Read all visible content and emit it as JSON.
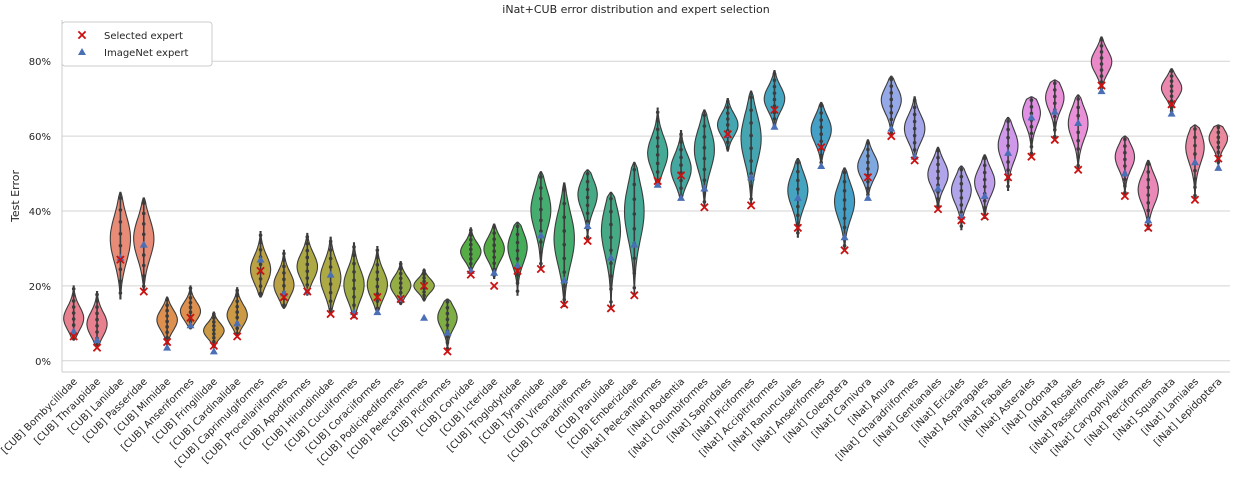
{
  "chart_data": {
    "type": "violin",
    "title": "iNat+CUB error distribution and expert selection",
    "xlabel": "",
    "ylabel": "Test Error",
    "ylim": [
      -3,
      91
    ],
    "yticks": [
      0,
      20,
      40,
      60,
      80
    ],
    "ytick_labels": [
      "0%",
      "20%",
      "40%",
      "60%",
      "80%"
    ],
    "grid": "horizontal",
    "legend": {
      "placement": "top-left",
      "entries": [
        {
          "label": "Selected expert",
          "marker": "x",
          "color": "#cc1111"
        },
        {
          "label": "ImageNet expert",
          "marker": "triangle",
          "color": "#4a6fb5"
        }
      ]
    },
    "categories": [
      {
        "name": "[CUB] Bombycillidae",
        "min": 5.5,
        "max": 20,
        "median": 11,
        "selected": 6.5,
        "imagenet": 7.8,
        "color": "#e8808f"
      },
      {
        "name": "[CUB] Thraupidae",
        "min": 3.5,
        "max": 18.5,
        "median": 9.5,
        "selected": 3.5,
        "imagenet": 5.5,
        "color": "#e8808f"
      },
      {
        "name": "[CUB] Laniidae",
        "min": 16.5,
        "max": 45,
        "median": 33,
        "selected": 27,
        "imagenet": 27.5,
        "color": "#e88c78"
      },
      {
        "name": "[CUB] Passeridae",
        "min": 18.5,
        "max": 43.5,
        "median": 33,
        "selected": 18.5,
        "imagenet": 31,
        "color": "#e88c78"
      },
      {
        "name": "[CUB] Mimidae",
        "min": 4,
        "max": 17,
        "median": 11,
        "selected": 5,
        "imagenet": 3.5,
        "color": "#dd9050"
      },
      {
        "name": "[CUB] Anseriformes",
        "min": 8.5,
        "max": 20,
        "median": 13,
        "selected": 11.5,
        "imagenet": 9.5,
        "color": "#dd9050"
      },
      {
        "name": "[CUB] Fringillidae",
        "min": 3.5,
        "max": 13,
        "median": 8,
        "selected": 4,
        "imagenet": 2.5,
        "color": "#cc9a45"
      },
      {
        "name": "[CUB] Cardinalidae",
        "min": 6.5,
        "max": 19.5,
        "median": 12,
        "selected": 6.5,
        "imagenet": 10,
        "color": "#cc9a45"
      },
      {
        "name": "[CUB] Caprimulgiformes",
        "min": 17,
        "max": 34.5,
        "median": 24,
        "selected": 24,
        "imagenet": 27,
        "color": "#bba245"
      },
      {
        "name": "[CUB] Procellariiformes",
        "min": 14,
        "max": 29.5,
        "median": 20,
        "selected": 17,
        "imagenet": 18,
        "color": "#bba245"
      },
      {
        "name": "[CUB] Apodiformes",
        "min": 17.5,
        "max": 34,
        "median": 25,
        "selected": 18.5,
        "imagenet": 18.5,
        "color": "#adaa45"
      },
      {
        "name": "[CUB] Hirundinidae",
        "min": 12.5,
        "max": 33,
        "median": 22,
        "selected": 12.5,
        "imagenet": 23,
        "color": "#adaa45"
      },
      {
        "name": "[CUB] Cuculiformes",
        "min": 11.5,
        "max": 31.5,
        "median": 20,
        "selected": 12,
        "imagenet": 13,
        "color": "#a0ad45"
      },
      {
        "name": "[CUB] Coraciiformes",
        "min": 13,
        "max": 30.5,
        "median": 20,
        "selected": 17,
        "imagenet": 13,
        "color": "#a0ad45"
      },
      {
        "name": "[CUB] Podicipediformes",
        "min": 15,
        "max": 26.5,
        "median": 20,
        "selected": 16.5,
        "imagenet": 16.5,
        "color": "#95ad45"
      },
      {
        "name": "[CUB] Pelecaniformes",
        "min": 16,
        "max": 24.5,
        "median": 20,
        "selected": 20,
        "imagenet": 11.5,
        "color": "#95ad45"
      },
      {
        "name": "[CUB] Piciformes",
        "min": 2.5,
        "max": 16.5,
        "median": 12,
        "selected": 2.5,
        "imagenet": 7.5,
        "color": "#7fae45"
      },
      {
        "name": "[CUB] Corvidae",
        "min": 24,
        "max": 35.5,
        "median": 29,
        "selected": 23,
        "imagenet": 24,
        "color": "#55ad45"
      },
      {
        "name": "[CUB] Icteridae",
        "min": 22,
        "max": 36.5,
        "median": 30,
        "selected": 20,
        "imagenet": 23.5,
        "color": "#55ad45"
      },
      {
        "name": "[CUB] Troglodytidae",
        "min": 17.5,
        "max": 37,
        "median": 31,
        "selected": 24,
        "imagenet": 25.5,
        "color": "#45ad5a"
      },
      {
        "name": "[CUB] Tyrannidae",
        "min": 24.5,
        "max": 50.5,
        "median": 41,
        "selected": 24.5,
        "imagenet": 33.5,
        "color": "#45ad70"
      },
      {
        "name": "[CUB] Vireonidae",
        "min": 14.5,
        "max": 47.5,
        "median": 33,
        "selected": 15,
        "imagenet": 21.5,
        "color": "#45ad70"
      },
      {
        "name": "[CUB] Charadriiformes",
        "min": 32,
        "max": 51,
        "median": 45,
        "selected": 32,
        "imagenet": 36,
        "color": "#45aa85"
      },
      {
        "name": "[CUB] Parulidae",
        "min": 14,
        "max": 45,
        "median": 36,
        "selected": 14,
        "imagenet": 27.5,
        "color": "#45aa85"
      },
      {
        "name": "[CUB] Emberizidae",
        "min": 17.5,
        "max": 53,
        "median": 41,
        "selected": 17.5,
        "imagenet": 31,
        "color": "#45aa95"
      },
      {
        "name": "[iNat] Pelecaniformes",
        "min": 47,
        "max": 67.5,
        "median": 55,
        "selected": 48,
        "imagenet": 47,
        "color": "#45aa95"
      },
      {
        "name": "[iNat] Rodentia",
        "min": 43,
        "max": 61.5,
        "median": 51,
        "selected": 49.5,
        "imagenet": 43.5,
        "color": "#45a8a0"
      },
      {
        "name": "[iNat] Columbiformes",
        "min": 41,
        "max": 67,
        "median": 57,
        "selected": 41,
        "imagenet": 46,
        "color": "#45a8a0"
      },
      {
        "name": "[iNat] Sapindales",
        "min": 56,
        "max": 70,
        "median": 63,
        "selected": 60.5,
        "imagenet": 60.5,
        "color": "#45a5b0"
      },
      {
        "name": "[iNat] Piciformes",
        "min": 41.5,
        "max": 72,
        "median": 60,
        "selected": 41.5,
        "imagenet": 49,
        "color": "#45a5b0"
      },
      {
        "name": "[iNat] Accipitriformes",
        "min": 62,
        "max": 77.5,
        "median": 70,
        "selected": 67,
        "imagenet": 62.5,
        "color": "#45a5c0"
      },
      {
        "name": "[iNat] Ranunculales",
        "min": 33,
        "max": 54,
        "median": 46,
        "selected": 35.5,
        "imagenet": 43.5,
        "color": "#45a5c0"
      },
      {
        "name": "[iNat] Anseriformes",
        "min": 52,
        "max": 69,
        "median": 62,
        "selected": 57,
        "imagenet": 52,
        "color": "#45a0c8"
      },
      {
        "name": "[iNat] Coleoptera",
        "min": 29.5,
        "max": 51.5,
        "median": 43,
        "selected": 29.5,
        "imagenet": 33,
        "color": "#45a0c8"
      },
      {
        "name": "[iNat] Carnivora",
        "min": 43.5,
        "max": 59,
        "median": 52,
        "selected": 49,
        "imagenet": 43.5,
        "color": "#7fa8e0"
      },
      {
        "name": "[iNat] Anura",
        "min": 60,
        "max": 76,
        "median": 70,
        "selected": 60,
        "imagenet": 62,
        "color": "#95a8e8"
      },
      {
        "name": "[iNat] Charadriiformes",
        "min": 53.5,
        "max": 70.5,
        "median": 62,
        "selected": 53.5,
        "imagenet": 54.5,
        "color": "#a5a5ea"
      },
      {
        "name": "[iNat] Gentianales",
        "min": 40.5,
        "max": 57,
        "median": 50,
        "selected": 40.5,
        "imagenet": 46,
        "color": "#b0a5ea"
      },
      {
        "name": "[iNat] Ericales",
        "min": 35,
        "max": 52,
        "median": 46,
        "selected": 37.5,
        "imagenet": 38.5,
        "color": "#b0a5ea"
      },
      {
        "name": "[iNat] Asparagales",
        "min": 38,
        "max": 55,
        "median": 48,
        "selected": 38.5,
        "imagenet": 44,
        "color": "#c0a0ea"
      },
      {
        "name": "[iNat] Fabales",
        "min": 45.5,
        "max": 65,
        "median": 58,
        "selected": 49,
        "imagenet": 55.5,
        "color": "#d098ea"
      },
      {
        "name": "[iNat] Asterales",
        "min": 54.5,
        "max": 70.5,
        "median": 67,
        "selected": 54.5,
        "imagenet": 65,
        "color": "#e090e5"
      },
      {
        "name": "[iNat] Odonata",
        "min": 59,
        "max": 75,
        "median": 71,
        "selected": 59,
        "imagenet": 66.5,
        "color": "#e890d8"
      },
      {
        "name": "[iNat] Rosales",
        "min": 51,
        "max": 71,
        "median": 64,
        "selected": 51,
        "imagenet": 63.5,
        "color": "#e890d8"
      },
      {
        "name": "[iNat] Passeriformes",
        "min": 72,
        "max": 86.5,
        "median": 80,
        "selected": 73.5,
        "imagenet": 72,
        "color": "#ea88c8"
      },
      {
        "name": "[iNat] Caryophyllales",
        "min": 44,
        "max": 60,
        "median": 55,
        "selected": 44,
        "imagenet": 50,
        "color": "#ea88c0"
      },
      {
        "name": "[iNat] Perciformes",
        "min": 35,
        "max": 53.5,
        "median": 46,
        "selected": 35.5,
        "imagenet": 37.5,
        "color": "#ea88b8"
      },
      {
        "name": "[iNat] Squamata",
        "min": 66,
        "max": 78,
        "median": 73,
        "selected": 68.5,
        "imagenet": 66,
        "color": "#ea88b0"
      },
      {
        "name": "[iNat] Lamiales",
        "min": 43,
        "max": 63,
        "median": 58,
        "selected": 43,
        "imagenet": 53,
        "color": "#ea88a5"
      },
      {
        "name": "[iNat] Lepidoptera",
        "min": 51,
        "max": 63,
        "median": 60,
        "selected": 54,
        "imagenet": 51.5,
        "color": "#ea889c"
      }
    ]
  }
}
